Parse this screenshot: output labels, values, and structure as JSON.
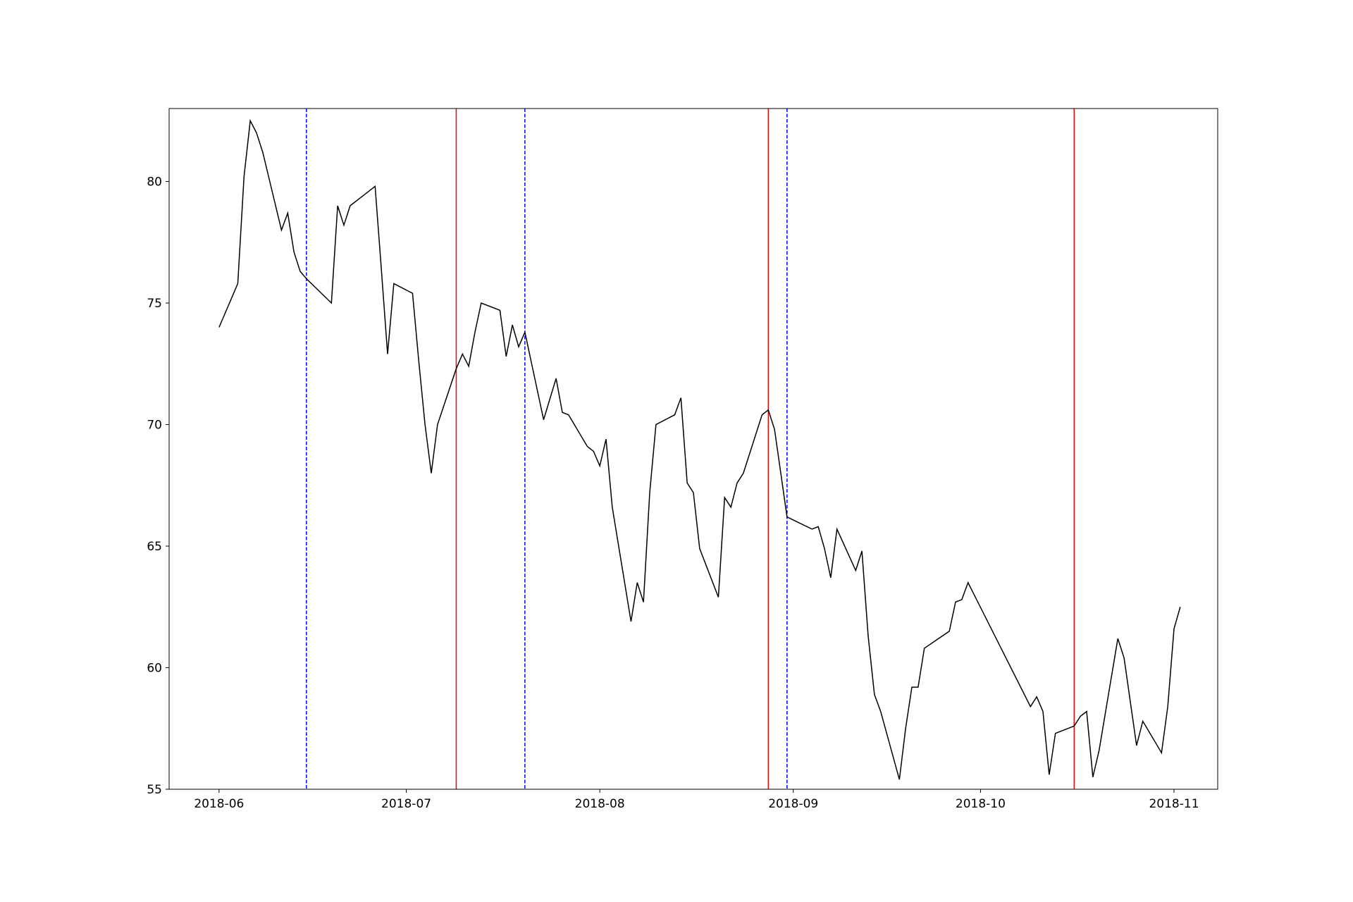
{
  "chart_data": {
    "type": "line",
    "title": "",
    "xlabel": "",
    "ylabel": "",
    "grid": false,
    "xlim": [
      "2018-05-24",
      "2018-11-08"
    ],
    "ylim": [
      55,
      83
    ],
    "x_ticks": [
      "2018-06",
      "2018-07",
      "2018-08",
      "2018-09",
      "2018-10",
      "2018-11"
    ],
    "y_ticks": [
      55,
      60,
      65,
      70,
      75,
      80
    ],
    "series": [
      {
        "color": "#000000",
        "points": [
          [
            "2018-06-01",
            74.0
          ],
          [
            "2018-06-04",
            75.8
          ],
          [
            "2018-06-05",
            80.2
          ],
          [
            "2018-06-06",
            82.5
          ],
          [
            "2018-06-07",
            82.0
          ],
          [
            "2018-06-08",
            81.2
          ],
          [
            "2018-06-11",
            78.0
          ],
          [
            "2018-06-12",
            78.7
          ],
          [
            "2018-06-13",
            77.1
          ],
          [
            "2018-06-14",
            76.3
          ],
          [
            "2018-06-15",
            76.0
          ],
          [
            "2018-06-19",
            75.0
          ],
          [
            "2018-06-20",
            79.0
          ],
          [
            "2018-06-21",
            78.2
          ],
          [
            "2018-06-22",
            79.0
          ],
          [
            "2018-06-25",
            79.6
          ],
          [
            "2018-06-26",
            79.8
          ],
          [
            "2018-06-27",
            76.4
          ],
          [
            "2018-06-28",
            72.9
          ],
          [
            "2018-06-29",
            75.8
          ],
          [
            "2018-07-02",
            75.4
          ],
          [
            "2018-07-03",
            72.6
          ],
          [
            "2018-07-04",
            70.0
          ],
          [
            "2018-07-05",
            68.0
          ],
          [
            "2018-07-06",
            70.0
          ],
          [
            "2018-07-09",
            72.3
          ],
          [
            "2018-07-10",
            72.9
          ],
          [
            "2018-07-11",
            72.4
          ],
          [
            "2018-07-12",
            73.8
          ],
          [
            "2018-07-13",
            75.0
          ],
          [
            "2018-07-16",
            74.7
          ],
          [
            "2018-07-17",
            72.8
          ],
          [
            "2018-07-18",
            74.1
          ],
          [
            "2018-07-19",
            73.2
          ],
          [
            "2018-07-20",
            73.8
          ],
          [
            "2018-07-23",
            70.2
          ],
          [
            "2018-07-25",
            71.9
          ],
          [
            "2018-07-26",
            70.5
          ],
          [
            "2018-07-27",
            70.4
          ],
          [
            "2018-07-30",
            69.1
          ],
          [
            "2018-07-31",
            68.9
          ],
          [
            "2018-08-01",
            68.3
          ],
          [
            "2018-08-02",
            69.4
          ],
          [
            "2018-08-03",
            66.6
          ],
          [
            "2018-08-06",
            61.9
          ],
          [
            "2018-08-07",
            63.5
          ],
          [
            "2018-08-08",
            62.7
          ],
          [
            "2018-08-09",
            67.2
          ],
          [
            "2018-08-10",
            70.0
          ],
          [
            "2018-08-13",
            70.4
          ],
          [
            "2018-08-14",
            71.1
          ],
          [
            "2018-08-15",
            67.6
          ],
          [
            "2018-08-16",
            67.2
          ],
          [
            "2018-08-17",
            64.9
          ],
          [
            "2018-08-20",
            62.9
          ],
          [
            "2018-08-21",
            67.0
          ],
          [
            "2018-08-22",
            66.6
          ],
          [
            "2018-08-23",
            67.6
          ],
          [
            "2018-08-24",
            68.0
          ],
          [
            "2018-08-27",
            70.4
          ],
          [
            "2018-08-28",
            70.6
          ],
          [
            "2018-08-29",
            69.8
          ],
          [
            "2018-08-30",
            68.0
          ],
          [
            "2018-08-31",
            66.2
          ],
          [
            "2018-09-04",
            65.7
          ],
          [
            "2018-09-05",
            65.8
          ],
          [
            "2018-09-06",
            64.9
          ],
          [
            "2018-09-07",
            63.7
          ],
          [
            "2018-09-08",
            65.7
          ],
          [
            "2018-09-11",
            64.0
          ],
          [
            "2018-09-12",
            64.8
          ],
          [
            "2018-09-13",
            61.3
          ],
          [
            "2018-09-14",
            58.9
          ],
          [
            "2018-09-15",
            58.2
          ],
          [
            "2018-09-18",
            55.4
          ],
          [
            "2018-09-19",
            57.5
          ],
          [
            "2018-09-20",
            59.2
          ],
          [
            "2018-09-21",
            59.2
          ],
          [
            "2018-09-22",
            60.8
          ],
          [
            "2018-09-26",
            61.5
          ],
          [
            "2018-09-27",
            62.7
          ],
          [
            "2018-09-28",
            62.8
          ],
          [
            "2018-09-29",
            63.5
          ],
          [
            "2018-10-09",
            58.4
          ],
          [
            "2018-10-10",
            58.8
          ],
          [
            "2018-10-11",
            58.2
          ],
          [
            "2018-10-12",
            55.6
          ],
          [
            "2018-10-13",
            57.3
          ],
          [
            "2018-10-16",
            57.6
          ],
          [
            "2018-10-17",
            58.0
          ],
          [
            "2018-10-18",
            58.2
          ],
          [
            "2018-10-19",
            55.5
          ],
          [
            "2018-10-20",
            56.6
          ],
          [
            "2018-10-23",
            61.2
          ],
          [
            "2018-10-24",
            60.4
          ],
          [
            "2018-10-26",
            56.8
          ],
          [
            "2018-10-27",
            57.8
          ],
          [
            "2018-10-30",
            56.5
          ],
          [
            "2018-10-31",
            58.4
          ],
          [
            "2018-11-01",
            61.6
          ],
          [
            "2018-11-02",
            62.5
          ]
        ]
      }
    ],
    "vertical_lines": [
      {
        "x": "2018-06-15",
        "color": "#0000ff",
        "style": "dashed"
      },
      {
        "x": "2018-07-09",
        "color": "#ff0000",
        "style": "solid"
      },
      {
        "x": "2018-07-20",
        "color": "#0000ff",
        "style": "dashed"
      },
      {
        "x": "2018-08-28",
        "color": "#ff0000",
        "style": "solid"
      },
      {
        "x": "2018-08-31",
        "color": "#0000ff",
        "style": "dashed"
      },
      {
        "x": "2018-10-16",
        "color": "#ff0000",
        "style": "solid"
      }
    ]
  }
}
